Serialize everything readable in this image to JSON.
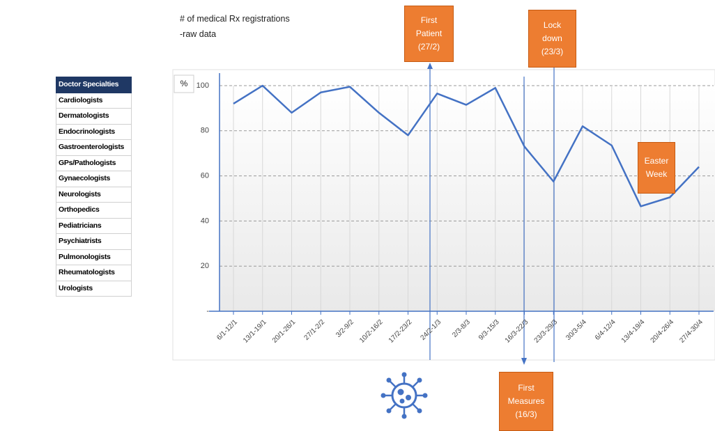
{
  "sidebar": {
    "header": "Doctor Specialties",
    "items": [
      "Cardiologists",
      "Dermatologists",
      "Endocrinologists",
      "Gastroenterologists",
      "GPs/Pathologists",
      "Gynaecologists",
      "Neurologists",
      "Orthopedics",
      "Pediatricians",
      "Psychiatrists",
      "Pulmonologists",
      "Rheumatologists",
      "Urologists"
    ]
  },
  "chart_data": {
    "type": "line",
    "title": "# of medical Rx registrations",
    "subtitle": "-raw data",
    "y_label": "%",
    "categories": [
      "6/1-12/1",
      "13/1-19/1",
      "20/1-26/1",
      "27/1-2/2",
      "3/2-9/2",
      "10/2-16/2",
      "17/2-23/2",
      "24/2-1/3",
      "2/3-8/3",
      "9/3-15/3",
      "16/3-22/3",
      "23/3-29/3",
      "30/3-5/4",
      "6/4-12/4",
      "13/4-19/4",
      "20/4-26/4",
      "27/4-30/4"
    ],
    "series": [
      {
        "name": "Rx registrations",
        "color": "#4472c4",
        "values": [
          92,
          100,
          88,
          97,
          99.5,
          88,
          78,
          96.5,
          91.5,
          99,
          73,
          57.5,
          82,
          73.5,
          46.5,
          50.5,
          64
        ]
      }
    ],
    "ylim": [
      0,
      100
    ],
    "yticks": [
      {
        "value": 0,
        "label": "-"
      },
      20,
      40,
      60,
      80,
      100
    ],
    "grid": true,
    "annotations": {
      "first_patient": [
        "First",
        "Patient",
        "(27/2)"
      ],
      "lockdown": [
        "Lock",
        "down",
        "(23/3)"
      ],
      "first_measures": [
        "First",
        "Measures",
        "(16/3)"
      ],
      "easter": [
        "Easter",
        "Week"
      ]
    }
  }
}
